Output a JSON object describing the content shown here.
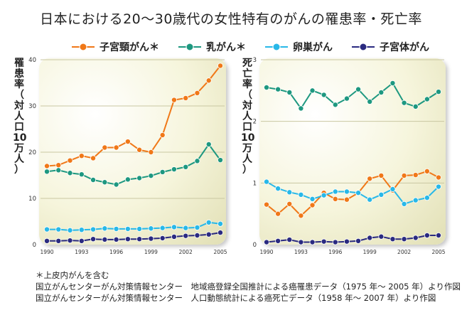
{
  "title": "日本における20〜30歳代の女性特有のがんの罹患率・死亡率",
  "legend": [
    {
      "label": "子宮頸がん＊",
      "color": "#f07818"
    },
    {
      "label": "乳がん＊",
      "color": "#1e9880"
    },
    {
      "label": "卵巣がん",
      "color": "#28b8e8"
    },
    {
      "label": "子宮体がん",
      "color": "#2a2a80"
    }
  ],
  "notes": [
    "＊上皮内がんを含む",
    "国立がんセンターがん対策情報センター　地域癌登録全国推計による癌罹患データ（1975 年〜 2005 年）より作図",
    "国立がんセンターがん対策情報センター　人口動態統計による癌死亡データ（1958 年〜 2007 年）より作図"
  ],
  "chart_data": [
    {
      "type": "line",
      "ylabel": "罹患率（対人口10万人）",
      "xlabel": "",
      "x": [
        1990,
        1991,
        1992,
        1993,
        1994,
        1995,
        1996,
        1997,
        1998,
        1999,
        2000,
        2001,
        2002,
        2003,
        2004,
        2005
      ],
      "xticks": [
        1990,
        1993,
        1996,
        1999,
        2002,
        2005
      ],
      "ylim": [
        0,
        40
      ],
      "yticks": [
        0,
        10,
        20,
        30,
        40
      ],
      "series": [
        {
          "name": "子宮頸がん＊",
          "color": "#f07818",
          "values": [
            17.0,
            17.2,
            18.2,
            19.2,
            18.7,
            21.0,
            21.0,
            22.3,
            20.5,
            20.0,
            23.7,
            31.3,
            31.7,
            32.8,
            35.5,
            38.7
          ]
        },
        {
          "name": "乳がん＊",
          "color": "#1e9880",
          "values": [
            15.8,
            16.1,
            15.5,
            15.2,
            14.0,
            13.5,
            13.0,
            14.1,
            14.4,
            14.9,
            15.7,
            16.3,
            16.8,
            18.1,
            21.7,
            18.3
          ]
        },
        {
          "name": "卵巣がん",
          "color": "#28b8e8",
          "values": [
            3.3,
            3.3,
            3.1,
            3.2,
            3.3,
            3.5,
            3.4,
            3.4,
            3.4,
            3.5,
            3.6,
            3.8,
            3.6,
            3.7,
            4.8,
            4.5
          ]
        },
        {
          "name": "子宮体がん",
          "color": "#2a2a80",
          "values": [
            0.8,
            0.8,
            0.9,
            0.8,
            1.2,
            1.1,
            1.1,
            1.2,
            1.2,
            1.3,
            1.4,
            1.7,
            1.9,
            2.0,
            2.2,
            2.6
          ]
        }
      ]
    },
    {
      "type": "line",
      "ylabel": "死亡率（対人口10万人）",
      "xlabel": "",
      "x": [
        1990,
        1991,
        1992,
        1993,
        1994,
        1995,
        1996,
        1997,
        1998,
        1999,
        2000,
        2001,
        2002,
        2003,
        2004,
        2005
      ],
      "xticks": [
        1990,
        1993,
        1996,
        1999,
        2002,
        2005
      ],
      "ylim": [
        0,
        3
      ],
      "yticks": [
        0,
        1,
        2,
        3
      ],
      "series": [
        {
          "name": "子宮頸がん＊",
          "color": "#f07818",
          "values": [
            0.65,
            0.5,
            0.66,
            0.47,
            0.64,
            0.84,
            0.74,
            0.73,
            0.84,
            1.07,
            1.12,
            0.88,
            1.12,
            1.13,
            1.19,
            1.09
          ]
        },
        {
          "name": "乳がん＊",
          "color": "#1e9880",
          "values": [
            2.55,
            2.52,
            2.47,
            2.21,
            2.5,
            2.43,
            2.27,
            2.37,
            2.52,
            2.32,
            2.47,
            2.62,
            2.3,
            2.24,
            2.36,
            2.48
          ]
        },
        {
          "name": "卵巣がん",
          "color": "#28b8e8",
          "values": [
            1.02,
            0.91,
            0.85,
            0.81,
            0.74,
            0.8,
            0.86,
            0.86,
            0.84,
            0.73,
            0.81,
            0.9,
            0.66,
            0.72,
            0.76,
            0.94
          ]
        },
        {
          "name": "子宮体がん",
          "color": "#2a2a80",
          "values": [
            0.04,
            0.06,
            0.08,
            0.04,
            0.04,
            0.05,
            0.04,
            0.05,
            0.06,
            0.11,
            0.13,
            0.09,
            0.09,
            0.11,
            0.15,
            0.15
          ]
        }
      ]
    }
  ]
}
